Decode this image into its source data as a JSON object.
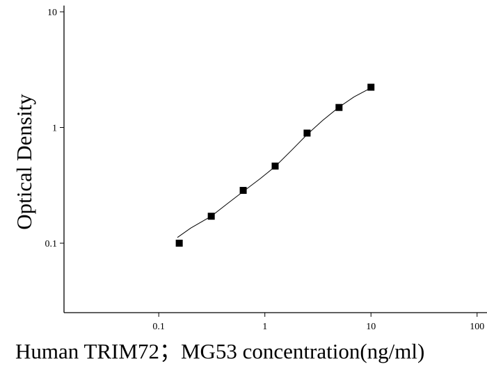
{
  "chart_data": {
    "type": "scatter",
    "x_label": "Human TRIM72；MG53 concentration(ng/ml)",
    "y_label": "Optical Density",
    "x_log": true,
    "y_log": true,
    "xlim": [
      0.0128,
      124
    ],
    "ylim": [
      0.0251,
      10
    ],
    "xticks": [
      0.1,
      1,
      10,
      100
    ],
    "yticks": [
      0.1,
      1,
      10
    ],
    "series": [
      {
        "style": "marker",
        "marker": "square",
        "color": "#000000",
        "x": [
          0.156,
          0.3125,
          0.625,
          1.25,
          2.5,
          5,
          10
        ],
        "values": [
          0.1,
          0.171,
          0.286,
          0.464,
          0.895,
          1.49,
          2.23
        ]
      },
      {
        "style": "line",
        "color": "#000000",
        "x": [
          0.15,
          0.2,
          0.3125,
          0.45,
          0.625,
          0.9,
          1.25,
          1.8,
          2.5,
          3.5,
          5,
          7,
          10
        ],
        "values": [
          0.112,
          0.135,
          0.171,
          0.222,
          0.28,
          0.36,
          0.46,
          0.64,
          0.87,
          1.15,
          1.5,
          1.85,
          2.2
        ]
      }
    ]
  }
}
